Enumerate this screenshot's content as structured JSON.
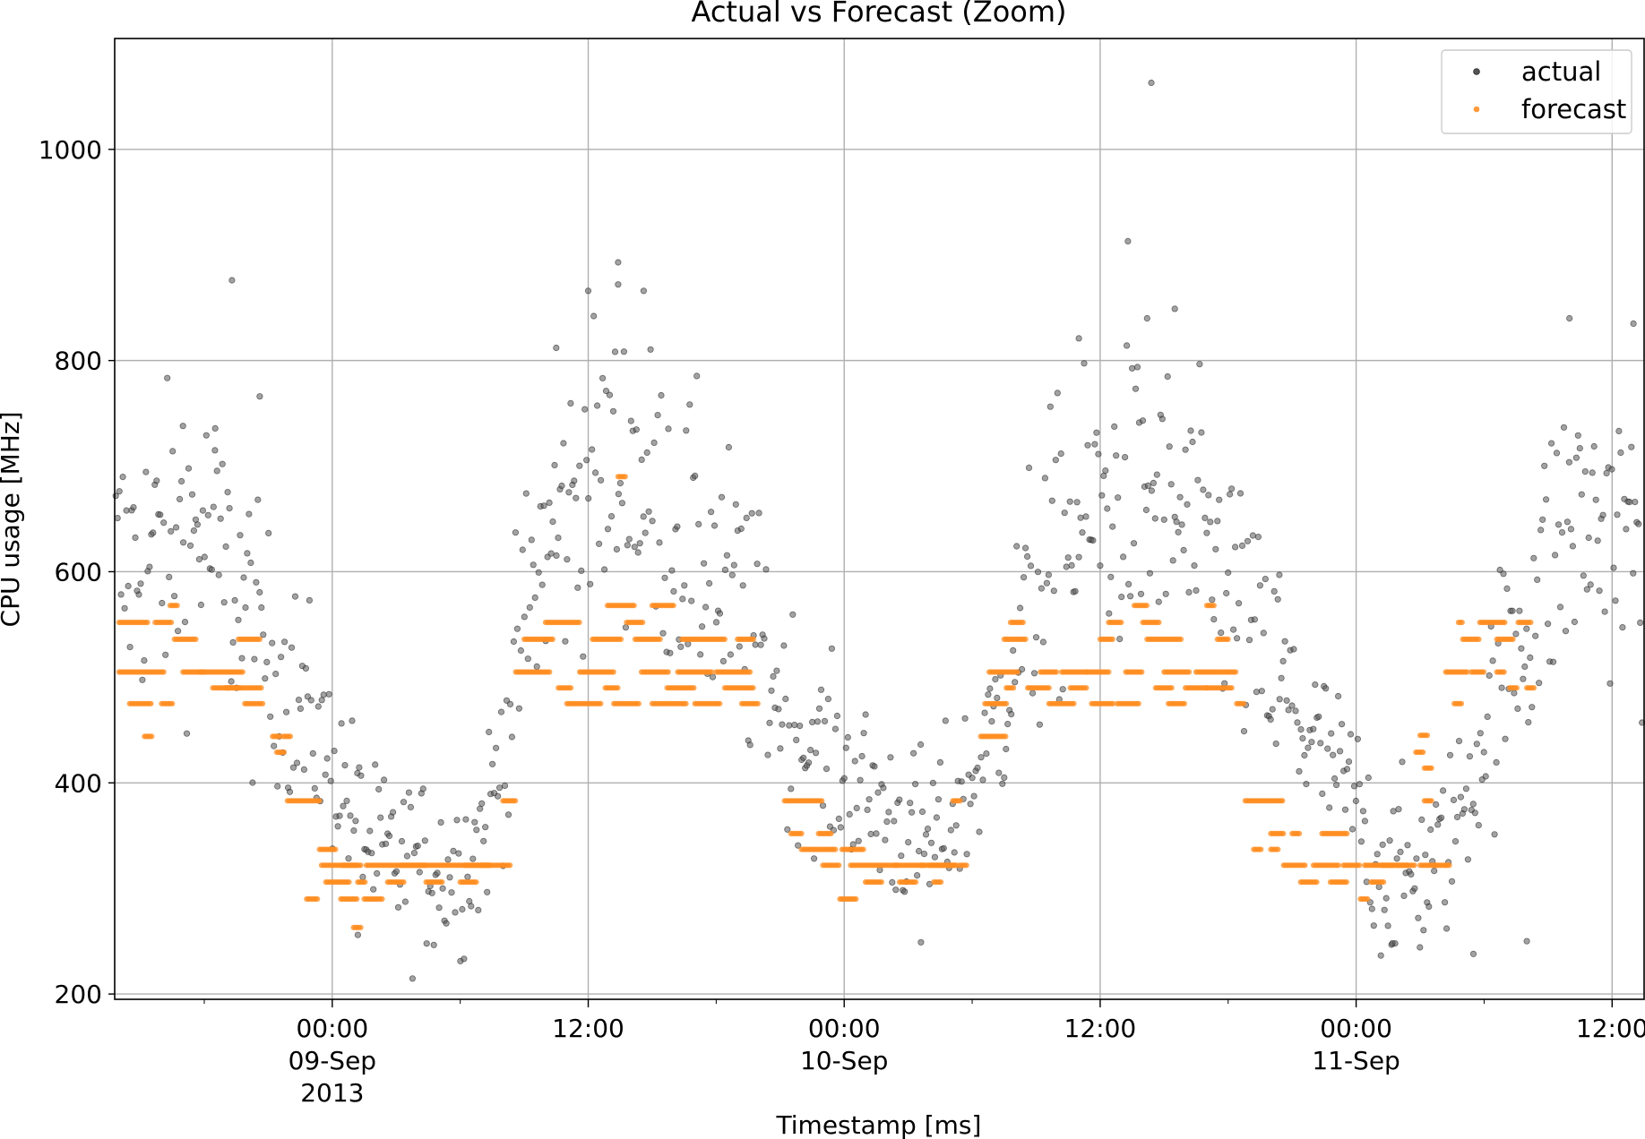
{
  "chart_data": {
    "type": "scatter",
    "title": "Actual vs Forecast (Zoom)",
    "xlabel": "Timestamp [ms]",
    "ylabel": "CPU usage [MHz]",
    "xlim_hours": [
      -10.2,
      61.5
    ],
    "ylim": [
      195,
      1105
    ],
    "grid": true,
    "legend_position": "top-right",
    "y_ticks": [
      200,
      400,
      600,
      800,
      1000
    ],
    "x_ticks": [
      {
        "hour": 0,
        "lines": [
          "00:00",
          "09-Sep",
          "2013"
        ]
      },
      {
        "hour": 12,
        "lines": [
          "12:00"
        ]
      },
      {
        "hour": 24,
        "lines": [
          "00:00",
          "10-Sep"
        ]
      },
      {
        "hour": 36,
        "lines": [
          "12:00"
        ]
      },
      {
        "hour": 48,
        "lines": [
          "00:00",
          "11-Sep"
        ]
      },
      {
        "hour": 60,
        "lines": [
          "12:00"
        ]
      }
    ],
    "x_minor_tick_hours": [
      -6,
      6,
      18,
      30,
      42,
      54
    ],
    "series": [
      {
        "name": "actual",
        "color": "#555555",
        "profile": [
          [
            -10.2,
            600
          ],
          [
            -8,
            620
          ],
          [
            -6,
            640
          ],
          [
            -4,
            560
          ],
          [
            -2,
            490
          ],
          [
            -1,
            450
          ],
          [
            0,
            420
          ],
          [
            2,
            330
          ],
          [
            4,
            320
          ],
          [
            6,
            320
          ],
          [
            7,
            350
          ],
          [
            8,
            430
          ],
          [
            9,
            550
          ],
          [
            10,
            620
          ],
          [
            12,
            690
          ],
          [
            14,
            700
          ],
          [
            16,
            640
          ],
          [
            18,
            590
          ],
          [
            20,
            540
          ],
          [
            21,
            480
          ],
          [
            22,
            440
          ],
          [
            24,
            410
          ],
          [
            26,
            370
          ],
          [
            28,
            340
          ],
          [
            30,
            400
          ],
          [
            31,
            450
          ],
          [
            32,
            530
          ],
          [
            34,
            620
          ],
          [
            36,
            660
          ],
          [
            38,
            670
          ],
          [
            40,
            640
          ],
          [
            42,
            590
          ],
          [
            43,
            540
          ],
          [
            44,
            500
          ],
          [
            46,
            440
          ],
          [
            48,
            380
          ],
          [
            49,
            320
          ],
          [
            51,
            310
          ],
          [
            52,
            330
          ],
          [
            53,
            380
          ],
          [
            54,
            450
          ],
          [
            55,
            510
          ],
          [
            56,
            560
          ],
          [
            58,
            650
          ],
          [
            60,
            640
          ],
          [
            61.5,
            620
          ]
        ],
        "outliers": [
          [
            -4.7,
            876
          ],
          [
            -3.4,
            766
          ],
          [
            13.4,
            893
          ],
          [
            13.4,
            872
          ],
          [
            14.6,
            866
          ],
          [
            12.0,
            866
          ],
          [
            10.5,
            812
          ],
          [
            37.3,
            913
          ],
          [
            38.4,
            1063
          ],
          [
            39.5,
            849
          ],
          [
            35.0,
            821
          ],
          [
            38.2,
            840
          ],
          [
            58.0,
            840
          ],
          [
            61.0,
            835
          ],
          [
            -5.5,
            715
          ],
          [
            -7.0,
            738
          ],
          [
            44.4,
            597
          ],
          [
            56.0,
            250
          ],
          [
            49.7,
            248
          ],
          [
            27.6,
            249
          ],
          [
            53.5,
            238
          ],
          [
            1.2,
            256
          ]
        ]
      },
      {
        "name": "forecast",
        "color": "#ff7f0e",
        "segments": [
          [
            -10.0,
            -8.6,
            552
          ],
          [
            -10.0,
            -9.0,
            505
          ],
          [
            -9.5,
            -8.5,
            475
          ],
          [
            -8.9,
            -7.9,
            505
          ],
          [
            -8.8,
            -8.4,
            444
          ],
          [
            -8.3,
            -7.5,
            552
          ],
          [
            -8.0,
            -7.5,
            475
          ],
          [
            -7.6,
            -7.2,
            568
          ],
          [
            -7.4,
            -6.4,
            536
          ],
          [
            -7.0,
            -6.0,
            505
          ],
          [
            -6.2,
            -4.2,
            505
          ],
          [
            -5.6,
            -4.3,
            490
          ],
          [
            -5.0,
            -3.3,
            490
          ],
          [
            -4.4,
            -3.4,
            536
          ],
          [
            -4.1,
            -3.2,
            475
          ],
          [
            -2.8,
            -2.4,
            444
          ],
          [
            -2.6,
            -2.2,
            429
          ],
          [
            -2.1,
            -0.6,
            383
          ],
          [
            -1.2,
            -0.7,
            290
          ],
          [
            -0.6,
            0.2,
            337
          ],
          [
            -0.5,
            1.2,
            322
          ],
          [
            -0.3,
            0.8,
            306
          ],
          [
            0.4,
            1.2,
            290
          ],
          [
            1.2,
            1.6,
            306
          ],
          [
            1.6,
            4.4,
            322
          ],
          [
            1.5,
            2.4,
            290
          ],
          [
            0.5,
            1.4,
            322
          ],
          [
            2.6,
            3.4,
            306
          ],
          [
            3.2,
            7.4,
            322
          ],
          [
            4.4,
            5.2,
            306
          ],
          [
            6.0,
            6.8,
            306
          ],
          [
            6.2,
            7.4,
            322
          ],
          [
            7.0,
            8.4,
            322
          ],
          [
            8.0,
            8.6,
            383
          ],
          [
            1.0,
            1.4,
            263
          ],
          [
            -2.3,
            -1.9,
            444
          ],
          [
            8.6,
            10.2,
            505
          ],
          [
            9.0,
            10.4,
            536
          ],
          [
            10.0,
            11.6,
            552
          ],
          [
            10.6,
            11.2,
            490
          ],
          [
            11.0,
            12.6,
            475
          ],
          [
            11.6,
            13.2,
            505
          ],
          [
            12.2,
            13.6,
            536
          ],
          [
            12.9,
            14.2,
            568
          ],
          [
            12.8,
            13.4,
            490
          ],
          [
            13.8,
            14.6,
            552
          ],
          [
            13.2,
            14.4,
            475
          ],
          [
            14.5,
            15.8,
            505
          ],
          [
            14.2,
            15.4,
            536
          ],
          [
            15.0,
            16.6,
            475
          ],
          [
            15.7,
            17.0,
            490
          ],
          [
            16.2,
            17.8,
            505
          ],
          [
            16.4,
            18.4,
            536
          ],
          [
            17.0,
            18.2,
            475
          ],
          [
            18.0,
            19.6,
            505
          ],
          [
            18.4,
            19.8,
            490
          ],
          [
            19.0,
            19.8,
            536
          ],
          [
            19.2,
            20.0,
            475
          ],
          [
            13.4,
            13.8,
            690
          ],
          [
            15.0,
            16.0,
            568
          ],
          [
            21.2,
            23.0,
            383
          ],
          [
            21.5,
            22.0,
            352
          ],
          [
            22.0,
            23.6,
            337
          ],
          [
            22.8,
            23.4,
            352
          ],
          [
            23.0,
            23.8,
            322
          ],
          [
            23.9,
            24.9,
            337
          ],
          [
            23.8,
            24.6,
            290
          ],
          [
            24.3,
            26.5,
            322
          ],
          [
            25.0,
            25.8,
            306
          ],
          [
            26.4,
            27.8,
            322
          ],
          [
            26.6,
            27.4,
            306
          ],
          [
            27.6,
            28.6,
            322
          ],
          [
            28.2,
            28.6,
            306
          ],
          [
            28.6,
            29.2,
            322
          ],
          [
            29.1,
            29.5,
            383
          ],
          [
            29.4,
            29.8,
            322
          ],
          [
            28.0,
            29.3,
            322
          ],
          [
            30.4,
            31.6,
            444
          ],
          [
            30.6,
            31.6,
            475
          ],
          [
            30.8,
            32.2,
            505
          ],
          [
            31.6,
            32.0,
            490
          ],
          [
            31.5,
            32.5,
            536
          ],
          [
            31.8,
            32.4,
            552
          ],
          [
            32.6,
            33.6,
            490
          ],
          [
            33.2,
            34.0,
            505
          ],
          [
            33.6,
            34.8,
            475
          ],
          [
            34.2,
            35.4,
            505
          ],
          [
            34.6,
            35.4,
            490
          ],
          [
            35.4,
            36.4,
            505
          ],
          [
            35.6,
            36.6,
            475
          ],
          [
            36.0,
            36.6,
            536
          ],
          [
            36.4,
            37.0,
            552
          ],
          [
            36.8,
            37.8,
            475
          ],
          [
            37.2,
            38.0,
            505
          ],
          [
            37.6,
            38.2,
            568
          ],
          [
            38.0,
            38.8,
            552
          ],
          [
            38.2,
            39.8,
            536
          ],
          [
            38.6,
            39.4,
            490
          ],
          [
            39.2,
            40.0,
            475
          ],
          [
            39.0,
            40.2,
            505
          ],
          [
            40.0,
            41.0,
            490
          ],
          [
            40.5,
            41.5,
            505
          ],
          [
            41.0,
            41.4,
            568
          ],
          [
            41.0,
            42.2,
            490
          ],
          [
            41.6,
            42.4,
            505
          ],
          [
            41.5,
            42.0,
            536
          ],
          [
            42.4,
            42.8,
            475
          ],
          [
            42.8,
            44.6,
            383
          ],
          [
            43.2,
            43.6,
            337
          ],
          [
            44.0,
            44.4,
            337
          ],
          [
            44.0,
            44.6,
            352
          ],
          [
            44.6,
            45.6,
            322
          ],
          [
            45.0,
            45.4,
            352
          ],
          [
            45.4,
            46.2,
            306
          ],
          [
            46.0,
            47.2,
            322
          ],
          [
            46.4,
            47.6,
            352
          ],
          [
            46.8,
            47.6,
            306
          ],
          [
            47.4,
            48.2,
            322
          ],
          [
            48.2,
            48.6,
            290
          ],
          [
            48.4,
            49.8,
            322
          ],
          [
            48.7,
            49.3,
            306
          ],
          [
            49.2,
            50.4,
            322
          ],
          [
            49.9,
            50.4,
            322
          ],
          [
            50.4,
            50.8,
            322
          ],
          [
            51.0,
            51.4,
            445
          ],
          [
            50.8,
            51.2,
            429
          ],
          [
            51.2,
            51.6,
            383
          ],
          [
            51.2,
            51.6,
            414
          ],
          [
            51.7,
            52.2,
            322
          ],
          [
            52.2,
            53.2,
            505
          ],
          [
            52.6,
            53.0,
            475
          ],
          [
            52.8,
            53.0,
            552
          ],
          [
            53.0,
            53.8,
            536
          ],
          [
            53.4,
            54.0,
            505
          ],
          [
            53.8,
            55.0,
            552
          ],
          [
            54.6,
            55.4,
            536
          ],
          [
            54.6,
            55.0,
            505
          ],
          [
            55.2,
            55.6,
            490
          ],
          [
            55.6,
            56.2,
            552
          ],
          [
            56.0,
            56.4,
            490
          ],
          [
            51.0,
            51.8,
            322
          ],
          [
            52.2,
            52.4,
            322
          ]
        ]
      }
    ]
  }
}
